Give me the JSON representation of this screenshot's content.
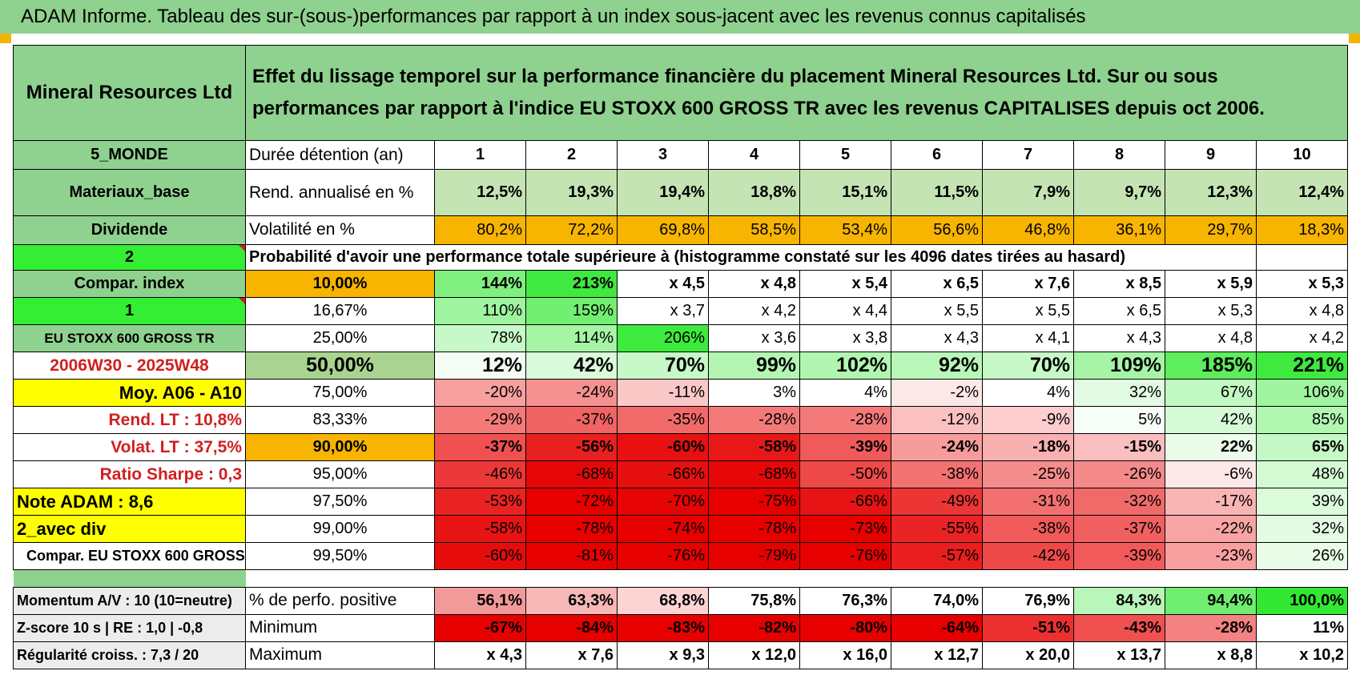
{
  "title": "ADAM Informe. Tableau des sur-(sous-)performances par rapport à un index sous-jacent avec les revenus connus capitalisés",
  "header": {
    "asset": "Mineral Resources Ltd",
    "description": "Effet du lissage temporel sur la performance financière du placement Mineral Resources Ltd. Sur ou sous performances par rapport à l'indice EU STOXX 600 GROSS TR avec les revenus CAPITALISES depuis oct 2006."
  },
  "side": {
    "region": "5_MONDE",
    "sector": "Materiaux_base",
    "type": "Dividende",
    "selector1": "2",
    "compar_label": "Compar. index",
    "selector2": "1",
    "index_name": "EU STOXX 600 GROSS TR",
    "period": "2006W30 - 2025W48",
    "moy": "Moy. A06 - A10",
    "rend_lt": "Rend. LT :    10,8%",
    "volat_lt": "Volat. LT :    37,5%",
    "sharpe": "Ratio Sharpe :     0,3",
    "note": "Note ADAM : 8,6",
    "div": "2_avec div",
    "compar_full": "Compar. EU STOXX 600 GROSS TR"
  },
  "stats": {
    "holding_label": "Durée détention (an)",
    "years": [
      "1",
      "2",
      "3",
      "4",
      "5",
      "6",
      "7",
      "8",
      "9",
      "10"
    ],
    "rend_label": "Rend. annualisé en %",
    "rend": [
      "12,5%",
      "19,3%",
      "19,4%",
      "18,8%",
      "15,1%",
      "11,5%",
      "7,9%",
      "9,7%",
      "12,3%",
      "12,4%"
    ],
    "vol_label": "Volatilité en %",
    "vol": [
      "80,2%",
      "72,2%",
      "69,8%",
      "58,5%",
      "53,4%",
      "56,6%",
      "46,8%",
      "36,1%",
      "29,7%",
      "18,3%"
    ],
    "prob_label": "Probabilité d'avoir une performance totale supérieure à (histogramme constaté sur les 4096 dates tirées au hasard)"
  },
  "prob_rows": [
    {
      "pct": "10,00%",
      "values": [
        "144%",
        "213%",
        "x 4,5",
        "x 4,8",
        "x 5,4",
        "x 6,5",
        "x 7,6",
        "x 8,5",
        "x 5,9",
        "x 5,3"
      ]
    },
    {
      "pct": "16,67%",
      "values": [
        "110%",
        "159%",
        "x 3,7",
        "x 4,2",
        "x 4,4",
        "x 5,5",
        "x 5,5",
        "x 6,5",
        "x 5,3",
        "x 4,8"
      ]
    },
    {
      "pct": "25,00%",
      "values": [
        "78%",
        "114%",
        "206%",
        "x 3,6",
        "x 3,8",
        "x 4,3",
        "x 4,1",
        "x 4,3",
        "x 4,8",
        "x 4,2"
      ]
    },
    {
      "pct": "50,00%",
      "values": [
        "12%",
        "42%",
        "70%",
        "99%",
        "102%",
        "92%",
        "70%",
        "109%",
        "185%",
        "221%"
      ]
    },
    {
      "pct": "75,00%",
      "values": [
        "-20%",
        "-24%",
        "-11%",
        "3%",
        "4%",
        "-2%",
        "4%",
        "32%",
        "67%",
        "106%"
      ]
    },
    {
      "pct": "83,33%",
      "values": [
        "-29%",
        "-37%",
        "-35%",
        "-28%",
        "-28%",
        "-12%",
        "-9%",
        "5%",
        "42%",
        "85%"
      ]
    },
    {
      "pct": "90,00%",
      "values": [
        "-37%",
        "-56%",
        "-60%",
        "-58%",
        "-39%",
        "-24%",
        "-18%",
        "-15%",
        "22%",
        "65%"
      ]
    },
    {
      "pct": "95,00%",
      "values": [
        "-46%",
        "-68%",
        "-66%",
        "-68%",
        "-50%",
        "-38%",
        "-25%",
        "-26%",
        "-6%",
        "48%"
      ]
    },
    {
      "pct": "97,50%",
      "values": [
        "-53%",
        "-72%",
        "-70%",
        "-75%",
        "-66%",
        "-49%",
        "-31%",
        "-32%",
        "-17%",
        "39%"
      ]
    },
    {
      "pct": "99,00%",
      "values": [
        "-58%",
        "-78%",
        "-74%",
        "-78%",
        "-73%",
        "-55%",
        "-38%",
        "-37%",
        "-22%",
        "32%"
      ]
    },
    {
      "pct": "99,50%",
      "values": [
        "-60%",
        "-81%",
        "-76%",
        "-79%",
        "-76%",
        "-57%",
        "-42%",
        "-39%",
        "-23%",
        "26%"
      ]
    }
  ],
  "bottom_rows": [
    {
      "side": "Momentum A/V : 10 (10=neutre)",
      "label": "% de perfo. positive",
      "values": [
        "56,1%",
        "63,3%",
        "68,8%",
        "75,8%",
        "76,3%",
        "74,0%",
        "76,9%",
        "84,3%",
        "94,4%",
        "100,0%"
      ]
    },
    {
      "side": "Z-score 10 s | RE : 1,0 | -0,8",
      "label": "Minimum",
      "values": [
        "-67%",
        "-84%",
        "-83%",
        "-82%",
        "-80%",
        "-64%",
        "-51%",
        "-43%",
        "-28%",
        "11%"
      ]
    },
    {
      "side": "Régularité croiss. : 7,3 / 20",
      "label": "Maximum",
      "values": [
        "x 4,3",
        "x 7,6",
        "x 9,3",
        "x 12,0",
        "x 16,0",
        "x 12,7",
        "x 20,0",
        "x 13,7",
        "x 8,8",
        "x 10,2"
      ]
    }
  ],
  "colors": {
    "header_green": "#8fd18f",
    "bright_green": "#33ee33",
    "orange": "#f7b400",
    "yellow": "#ffff00",
    "red_text": "#d11f1f",
    "rend_green": "#c4e4b4"
  },
  "cell_colors": {
    "prob": [
      [
        "#7ff07f",
        "#3fe93f",
        "#ffffff",
        "#ffffff",
        "#ffffff",
        "#ffffff",
        "#ffffff",
        "#ffffff",
        "#ffffff",
        "#ffffff"
      ],
      [
        "#9ff59f",
        "#72ef72",
        "#ffffff",
        "#ffffff",
        "#ffffff",
        "#ffffff",
        "#ffffff",
        "#ffffff",
        "#ffffff",
        "#ffffff"
      ],
      [
        "#c7f8c7",
        "#a5f5a5",
        "#3dea3d",
        "#ffffff",
        "#ffffff",
        "#ffffff",
        "#ffffff",
        "#ffffff",
        "#ffffff",
        "#ffffff"
      ],
      [
        "#f4fdf4",
        "#dafbda",
        "#c7f8c7",
        "#b2f6b2",
        "#b0f6b0",
        "#b8f7b8",
        "#c7f8c7",
        "#a6f5a6",
        "#5ded5d",
        "#3fe93f"
      ],
      [
        "#f7a0a0",
        "#f59090",
        "#fbc8c8",
        "#ffffff",
        "#ffffff",
        "#fde8e8",
        "#ffffff",
        "#e3fbe3",
        "#c2f8c2",
        "#9ff59f"
      ],
      [
        "#f47a7a",
        "#f06464",
        "#f16a6a",
        "#f47a7a",
        "#f47a7a",
        "#fbc0c0",
        "#fccece",
        "#f7fdf7",
        "#d6fad6",
        "#b1f6b1"
      ],
      [
        "#f05050",
        "#e82020",
        "#e81010",
        "#e81818",
        "#f05a5a",
        "#f79c9c",
        "#f9b0b0",
        "#fabebe",
        "#ebfcea",
        "#c4f8c4"
      ],
      [
        "#ec3838",
        "#e60808",
        "#e61010",
        "#e60808",
        "#ee4a4a",
        "#f27272",
        "#f58c8c",
        "#f58a8a",
        "#fde8e8",
        "#d4fad4"
      ],
      [
        "#e92222",
        "#e60000",
        "#e60404",
        "#e60000",
        "#e61414",
        "#ec3636",
        "#f27070",
        "#f16a6a",
        "#f9b4b4",
        "#dbfbdb"
      ],
      [
        "#e81414",
        "#e60000",
        "#e60000",
        "#e60000",
        "#e60000",
        "#ea2424",
        "#f05a5a",
        "#f06060",
        "#f8a4a4",
        "#e3fbe3"
      ],
      [
        "#e60c0c",
        "#e60000",
        "#e60000",
        "#e60000",
        "#e60000",
        "#ea1e1e",
        "#ee4a4a",
        "#f05a5a",
        "#f8a0a0",
        "#e8fce8"
      ]
    ],
    "bottom": [
      [
        "#f29a9a",
        "#f7b8b8",
        "#fcd4d4",
        "#ffffff",
        "#ffffff",
        "#ffffff",
        "#ffffff",
        "#b9f6b9",
        "#6fee6f",
        "#33e833"
      ],
      [
        "#e60000",
        "#e60000",
        "#e60000",
        "#e60000",
        "#e60000",
        "#e60000",
        "#ec3030",
        "#f05050",
        "#f48282",
        "#ffffff"
      ],
      [
        "#ffffff",
        "#ffffff",
        "#ffffff",
        "#ffffff",
        "#ffffff",
        "#ffffff",
        "#ffffff",
        "#ffffff",
        "#ffffff",
        "#ffffff"
      ]
    ]
  }
}
